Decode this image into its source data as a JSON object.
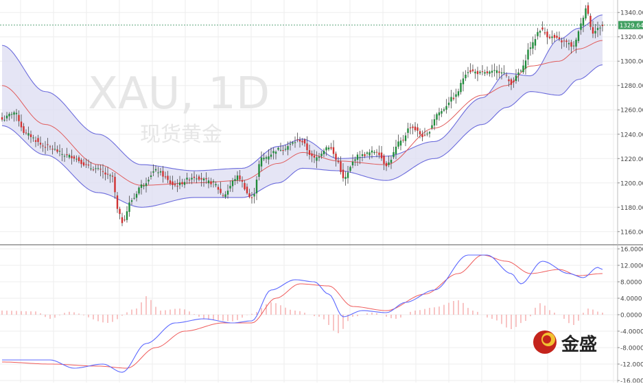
{
  "watermark": {
    "symbol": "XAU, 1D",
    "name": "现货黄金"
  },
  "logo": {
    "text": "金盛"
  },
  "price_label": "1329.64",
  "colors": {
    "up": "#1f8a3a",
    "down": "#d03030",
    "band": "#6b6bdc",
    "band_fill": "#dcdcf2",
    "mid": "#e05a5a",
    "macd_fast": "#5b67ff",
    "macd_slow": "#ef5a5a",
    "hist": "#f08a8a",
    "price_line": "#2e8b57",
    "price_bg": "#3f9f5f"
  },
  "chart_data": [
    {
      "type": "candlestick",
      "title": "",
      "y_ticks": [
        "1340.00",
        "1320.00",
        "1300.00",
        "1280.00",
        "1260.00",
        "1240.00",
        "1220.00",
        "1200.00",
        "1180.00",
        "1160.00"
      ],
      "ylim": [
        1152,
        1348
      ],
      "last_price": 1329.64,
      "bollinger": {
        "upper_anchors": [
          [
            0,
            1313
          ],
          [
            18,
            1275
          ],
          [
            40,
            1240
          ],
          [
            58,
            1215
          ],
          [
            80,
            1210
          ],
          [
            100,
            1212
          ],
          [
            115,
            1230
          ],
          [
            125,
            1236
          ],
          [
            140,
            1220
          ],
          [
            160,
            1222
          ],
          [
            180,
            1234
          ],
          [
            200,
            1270
          ],
          [
            210,
            1290
          ],
          [
            220,
            1288
          ],
          [
            232,
            1318
          ],
          [
            240,
            1327
          ],
          [
            250,
            1338
          ]
        ],
        "mid_anchors": [
          [
            0,
            1280
          ],
          [
            18,
            1248
          ],
          [
            40,
            1215
          ],
          [
            58,
            1198
          ],
          [
            80,
            1200
          ],
          [
            100,
            1202
          ],
          [
            115,
            1216
          ],
          [
            125,
            1225
          ],
          [
            140,
            1218
          ],
          [
            160,
            1215
          ],
          [
            180,
            1245
          ],
          [
            200,
            1272
          ],
          [
            210,
            1280
          ],
          [
            220,
            1296
          ],
          [
            232,
            1300
          ],
          [
            240,
            1310
          ],
          [
            250,
            1317
          ]
        ],
        "lower_anchors": [
          [
            0,
            1247
          ],
          [
            18,
            1223
          ],
          [
            40,
            1192
          ],
          [
            58,
            1180
          ],
          [
            80,
            1188
          ],
          [
            100,
            1188
          ],
          [
            115,
            1200
          ],
          [
            125,
            1212
          ],
          [
            140,
            1210
          ],
          [
            160,
            1202
          ],
          [
            180,
            1220
          ],
          [
            200,
            1248
          ],
          [
            210,
            1262
          ],
          [
            220,
            1275
          ],
          [
            232,
            1272
          ],
          [
            240,
            1285
          ],
          [
            250,
            1297
          ]
        ]
      },
      "close_anchors": [
        [
          0,
          1252
        ],
        [
          5,
          1258
        ],
        [
          10,
          1240
        ],
        [
          18,
          1230
        ],
        [
          28,
          1222
        ],
        [
          38,
          1212
        ],
        [
          46,
          1205
        ],
        [
          48,
          1178
        ],
        [
          50,
          1168
        ],
        [
          54,
          1186
        ],
        [
          58,
          1198
        ],
        [
          64,
          1210
        ],
        [
          72,
          1198
        ],
        [
          80,
          1205
        ],
        [
          88,
          1200
        ],
        [
          92,
          1190
        ],
        [
          98,
          1205
        ],
        [
          104,
          1187
        ],
        [
          108,
          1220
        ],
        [
          116,
          1228
        ],
        [
          124,
          1235
        ],
        [
          130,
          1220
        ],
        [
          136,
          1230
        ],
        [
          140,
          1217
        ],
        [
          142,
          1203
        ],
        [
          148,
          1222
        ],
        [
          156,
          1226
        ],
        [
          160,
          1215
        ],
        [
          166,
          1234
        ],
        [
          170,
          1246
        ],
        [
          176,
          1238
        ],
        [
          182,
          1258
        ],
        [
          188,
          1270
        ],
        [
          194,
          1292
        ],
        [
          200,
          1290
        ],
        [
          208,
          1292
        ],
        [
          212,
          1282
        ],
        [
          216,
          1292
        ],
        [
          220,
          1312
        ],
        [
          224,
          1326
        ],
        [
          228,
          1320
        ],
        [
          234,
          1316
        ],
        [
          238,
          1312
        ],
        [
          241,
          1330
        ],
        [
          243,
          1344
        ],
        [
          246,
          1324
        ],
        [
          250,
          1329
        ]
      ]
    },
    {
      "type": "macd",
      "y_ticks": [
        "16.0000",
        "12.0000",
        "8.0000",
        "4.0000",
        "0.0000",
        "-4.0000",
        "-8.0000",
        "-12.0000",
        "-16.0000"
      ],
      "ylim": [
        -16,
        16.5
      ],
      "fast_anchors": [
        [
          0,
          -11
        ],
        [
          10,
          -11
        ],
        [
          20,
          -11
        ],
        [
          30,
          -13
        ],
        [
          42,
          -12
        ],
        [
          50,
          -14
        ],
        [
          60,
          -7
        ],
        [
          72,
          -2
        ],
        [
          84,
          -1
        ],
        [
          96,
          -2
        ],
        [
          104,
          -1.5
        ],
        [
          112,
          6
        ],
        [
          122,
          8.5
        ],
        [
          130,
          8
        ],
        [
          136,
          5
        ],
        [
          142,
          -0.5
        ],
        [
          150,
          1
        ],
        [
          160,
          0.5
        ],
        [
          168,
          3
        ],
        [
          180,
          6
        ],
        [
          194,
          14.5
        ],
        [
          202,
          14.5
        ],
        [
          212,
          10
        ],
        [
          216,
          7.5
        ],
        [
          225,
          13
        ],
        [
          236,
          10
        ],
        [
          242,
          9
        ],
        [
          248,
          11.5
        ],
        [
          250,
          11
        ]
      ],
      "slow_anchors": [
        [
          0,
          -11.5
        ],
        [
          20,
          -12
        ],
        [
          40,
          -12.5
        ],
        [
          52,
          -13
        ],
        [
          64,
          -8
        ],
        [
          76,
          -4
        ],
        [
          92,
          -2
        ],
        [
          104,
          -2
        ],
        [
          114,
          4
        ],
        [
          124,
          7.5
        ],
        [
          136,
          7
        ],
        [
          146,
          2
        ],
        [
          160,
          1
        ],
        [
          176,
          5
        ],
        [
          190,
          10
        ],
        [
          200,
          14.5
        ],
        [
          210,
          13
        ],
        [
          220,
          10
        ],
        [
          232,
          11
        ],
        [
          240,
          9.5
        ],
        [
          250,
          10
        ]
      ],
      "hist_anchors": [
        [
          0,
          1
        ],
        [
          14,
          0.8
        ],
        [
          20,
          -1
        ],
        [
          28,
          0.7
        ],
        [
          44,
          -2
        ],
        [
          56,
          1.5
        ],
        [
          60,
          4.5
        ],
        [
          66,
          1
        ],
        [
          74,
          1.5
        ],
        [
          86,
          -1.2
        ],
        [
          96,
          -1.6
        ],
        [
          104,
          0.2
        ],
        [
          112,
          3
        ],
        [
          122,
          1
        ],
        [
          132,
          -0.5
        ],
        [
          140,
          -4.5
        ],
        [
          146,
          -0.5
        ],
        [
          154,
          0.5
        ],
        [
          164,
          -1
        ],
        [
          172,
          1
        ],
        [
          180,
          1.8
        ],
        [
          190,
          3.5
        ],
        [
          196,
          1
        ],
        [
          204,
          -1
        ],
        [
          212,
          -3.5
        ],
        [
          218,
          -1.5
        ],
        [
          224,
          2.8
        ],
        [
          230,
          0.5
        ],
        [
          238,
          -2.5
        ],
        [
          244,
          1.5
        ],
        [
          250,
          0.5
        ]
      ]
    }
  ]
}
